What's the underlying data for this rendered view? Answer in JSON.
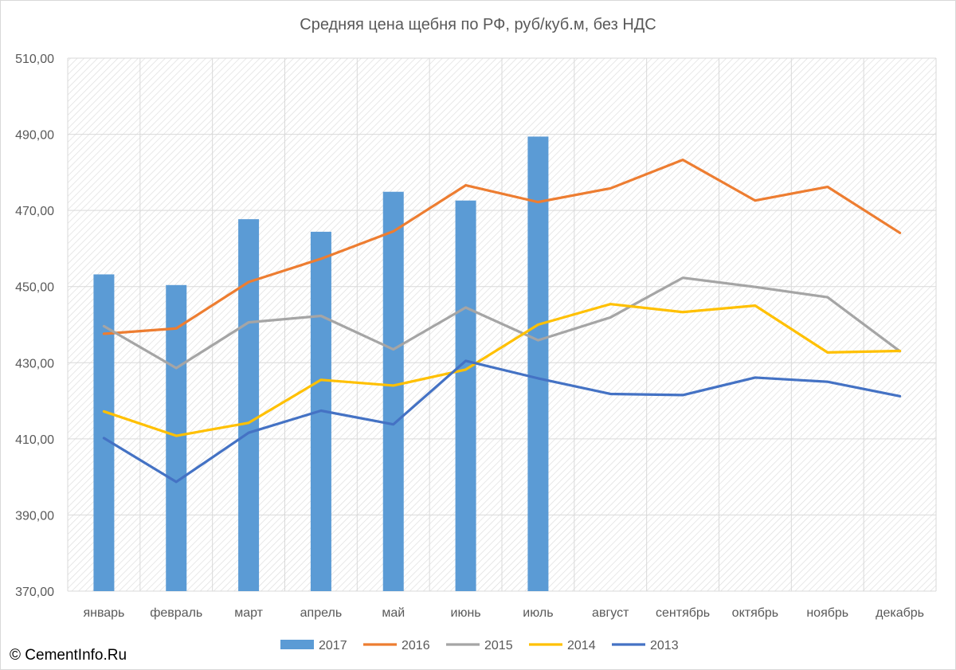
{
  "copyright": "© CementInfo.Ru",
  "chart_data": {
    "type": "bar+line",
    "title": "Средняя цена щебня по РФ, руб/куб.м, без НДС",
    "xlabel": "",
    "ylabel": "",
    "ylim": [
      370,
      510
    ],
    "yticks": [
      370,
      390,
      410,
      430,
      450,
      470,
      490,
      510
    ],
    "ytick_labels": [
      "370,00",
      "390,00",
      "410,00",
      "430,00",
      "450,00",
      "470,00",
      "490,00",
      "510,00"
    ],
    "grid": true,
    "legend_position": "bottom",
    "categories": [
      "январь",
      "февраль",
      "март",
      "апрель",
      "май",
      "июнь",
      "июль",
      "август",
      "сентябрь",
      "октябрь",
      "ноябрь",
      "декабрь"
    ],
    "bar_series": {
      "name": "2017",
      "color": "#5b9bd5",
      "values": [
        453.2,
        450.4,
        467.7,
        464.4,
        474.9,
        472.6,
        489.4,
        null,
        null,
        null,
        null,
        null
      ]
    },
    "line_series": [
      {
        "name": "2016",
        "color": "#ed7d31",
        "values": [
          437.6,
          439.0,
          451.2,
          457.3,
          464.5,
          476.6,
          472.2,
          475.8,
          483.3,
          472.6,
          476.2,
          464.1
        ]
      },
      {
        "name": "2015",
        "color": "#a5a5a5",
        "values": [
          439.6,
          428.6,
          440.6,
          442.3,
          433.5,
          444.5,
          435.9,
          441.9,
          452.3,
          449.9,
          447.2,
          433.0
        ]
      },
      {
        "name": "2014",
        "color": "#ffc000",
        "values": [
          417.2,
          410.8,
          414.2,
          425.5,
          424.0,
          428.2,
          440.0,
          445.4,
          443.3,
          445.0,
          432.7,
          433.1
        ]
      },
      {
        "name": "2013",
        "color": "#4472c4",
        "values": [
          410.2,
          398.7,
          411.6,
          417.4,
          413.8,
          430.5,
          425.9,
          421.8,
          421.5,
          426.1,
          425.0,
          421.2
        ]
      }
    ]
  }
}
